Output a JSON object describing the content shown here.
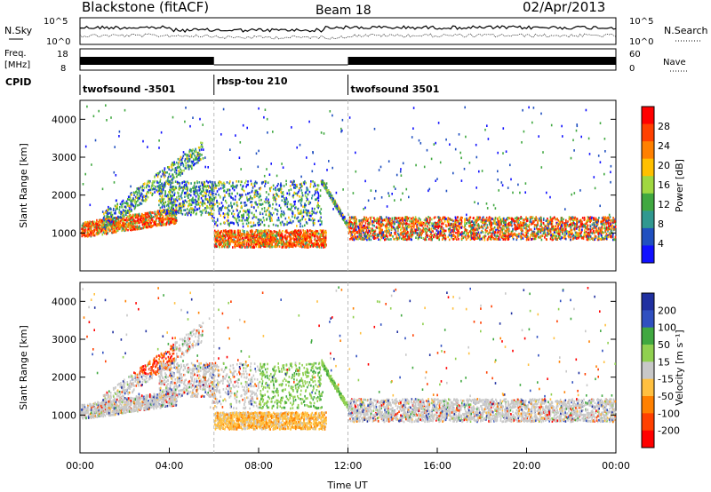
{
  "header": {
    "site": "Blackstone (fitACF)",
    "beam": "Beam 18",
    "date": "02/Apr/2013"
  },
  "top_panels": {
    "noise": {
      "left_label": "N.Sky",
      "right_label": "N.Search",
      "left_ticks": [
        "10^5",
        "10^0"
      ],
      "right_ticks": [
        "10^5",
        "10^0"
      ]
    },
    "freq": {
      "left_label_1": "Freq.",
      "left_label_2": "[MHz]",
      "right_label": "Nave",
      "left_ticks": [
        "18",
        "8"
      ],
      "right_ticks": [
        "60",
        "0"
      ]
    },
    "cpid": {
      "label": "CPID",
      "segments": [
        {
          "name": "twofsound -3501",
          "start": 0,
          "end": 6
        },
        {
          "name": "rbsp-tou 210",
          "start": 6,
          "end": 12
        },
        {
          "name": "twofsound 3501",
          "start": 12,
          "end": 24
        }
      ]
    }
  },
  "x_axis": {
    "label": "Time UT",
    "ticks": [
      "00:00",
      "04:00",
      "08:00",
      "12:00",
      "16:00",
      "20:00",
      "00:00"
    ]
  },
  "chart_data": [
    {
      "type": "heatmap",
      "panel": "power",
      "ylabel": "Slant Range [km]",
      "x_range_hours": [
        0,
        24
      ],
      "ylim": [
        0,
        4500
      ],
      "yticks": [
        1000,
        2000,
        3000,
        4000
      ],
      "colorbar": {
        "label": "Power [dB]",
        "ticks": [
          "28",
          "24",
          "20",
          "16",
          "12",
          "8",
          "4"
        ],
        "colors": [
          "#ff0000",
          "#ff4000",
          "#ff8000",
          "#ffc000",
          "#a0d840",
          "#40a840",
          "#309890",
          "#2050c0",
          "#1010ff"
        ]
      },
      "regions": [
        {
          "x": [
            0,
            4
          ],
          "y": [
            900,
            1200
          ],
          "level": "high"
        },
        {
          "x": [
            4,
            6
          ],
          "y": [
            1500,
            2400
          ],
          "level": "medium"
        },
        {
          "x": [
            6,
            11
          ],
          "y": [
            600,
            1000
          ],
          "level": "high"
        },
        {
          "x": [
            6,
            11
          ],
          "y": [
            1200,
            2400
          ],
          "level": "medium"
        },
        {
          "x": [
            12,
            24
          ],
          "y": [
            900,
            1400
          ],
          "level": "medium-high"
        }
      ]
    },
    {
      "type": "heatmap",
      "panel": "velocity",
      "ylabel": "Slant Range [km]",
      "x_range_hours": [
        0,
        24
      ],
      "ylim": [
        0,
        4500
      ],
      "yticks": [
        1000,
        2000,
        3000,
        4000
      ],
      "colorbar": {
        "label": "Velocity [m s⁻¹]",
        "ticks": [
          "200",
          "100",
          "50",
          "15",
          "-15",
          "-50",
          "-100",
          "-200"
        ],
        "colors": [
          "#2030a0",
          "#3050c0",
          "#40a840",
          "#90d050",
          "#c8c8c8",
          "#ffc040",
          "#ff8000",
          "#ff4000",
          "#ff0000"
        ]
      },
      "regions": [
        {
          "x": [
            0,
            24
          ],
          "y": [
            900,
            1400
          ],
          "level": "near-zero"
        },
        {
          "x": [
            2,
            4
          ],
          "y": [
            2200,
            3500
          ],
          "level": "negative-strong"
        },
        {
          "x": [
            6,
            9
          ],
          "y": [
            500,
            900
          ],
          "level": "negative-moderate"
        },
        {
          "x": [
            8,
            11
          ],
          "y": [
            1500,
            2800
          ],
          "level": "positive"
        }
      ]
    }
  ]
}
